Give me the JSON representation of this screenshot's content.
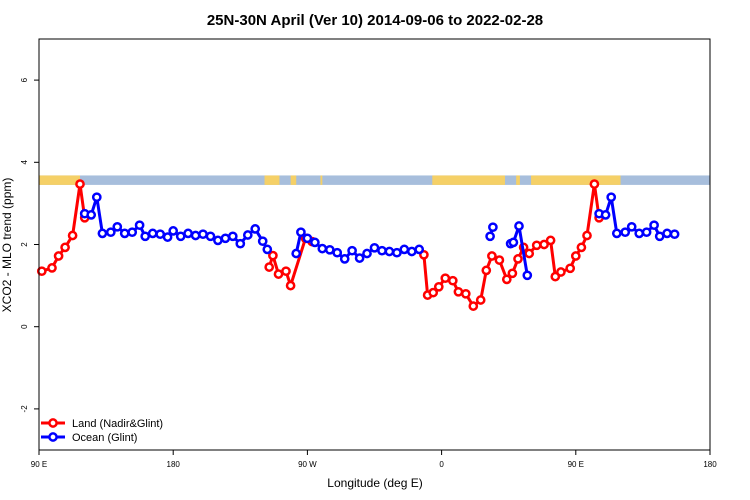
{
  "chart_data": {
    "type": "line",
    "title": "25N-30N April (Ver 10)   2014-09-06 to 2022-02-28",
    "xlabel": "Longitude (deg E)",
    "ylabel": "XCO2 - MLO trend (ppm)",
    "xlim": [
      90,
      450
    ],
    "ylim": [
      -3,
      7
    ],
    "x_ticks": [
      {
        "value": 90,
        "label": "90 E"
      },
      {
        "value": 162,
        "label": "180"
      },
      {
        "value": 234,
        "label": "90 W"
      },
      {
        "value": 306,
        "label": "0"
      },
      {
        "value": 378,
        "label": "90 E"
      },
      {
        "value": 450,
        "label": "180"
      }
    ],
    "y_ticks": [
      -2,
      0,
      2,
      4,
      6
    ],
    "grid": false,
    "legend_position": "bottom-left",
    "colors": {
      "land": "#ff0000",
      "ocean": "#0000ff",
      "band_ocean": "#a7bedc",
      "band_land": "#f5d067"
    },
    "land_band": {
      "y_range": [
        3.45,
        3.68
      ],
      "land_lon_ranges": [
        [
          90,
          112
        ],
        [
          211,
          219
        ],
        [
          225,
          228
        ],
        [
          241,
          242
        ],
        [
          301,
          340
        ],
        [
          346,
          348
        ],
        [
          354,
          402
        ]
      ]
    },
    "series": [
      {
        "name": "Land (Nadir&Glint)",
        "color": "#ff0000",
        "segments": [
          [
            [
              91.5,
              1.35
            ],
            [
              97,
              1.43
            ],
            [
              100.5,
              1.72
            ],
            [
              104,
              1.93
            ],
            [
              108,
              2.22
            ],
            [
              112,
              3.47
            ],
            [
              114.5,
              2.65
            ]
          ],
          [
            [
              213.5,
              1.45
            ],
            [
              215.5,
              1.73
            ],
            [
              218.5,
              1.28
            ],
            [
              222.5,
              1.35
            ],
            [
              225,
              1.0
            ],
            [
              233,
              2.15
            ],
            [
              236.5,
              2.07
            ]
          ],
          [
            [
              296.5,
              1.75
            ],
            [
              298.5,
              0.77
            ],
            [
              301.5,
              0.83
            ],
            [
              304.5,
              0.97
            ],
            [
              308,
              1.18
            ],
            [
              312,
              1.12
            ],
            [
              315,
              0.85
            ],
            [
              319,
              0.8
            ],
            [
              323,
              0.5
            ],
            [
              327,
              0.65
            ],
            [
              330,
              1.37
            ],
            [
              333,
              1.72
            ],
            [
              337,
              1.62
            ],
            [
              341,
              1.15
            ],
            [
              344,
              1.3
            ],
            [
              347,
              1.65
            ],
            [
              350,
              1.93
            ],
            [
              353,
              1.78
            ],
            [
              357,
              1.98
            ],
            [
              361,
              2.0
            ],
            [
              364.5,
              2.1
            ],
            [
              367,
              1.22
            ],
            [
              370,
              1.33
            ],
            [
              375,
              1.42
            ],
            [
              378,
              1.72
            ],
            [
              381,
              1.93
            ],
            [
              384,
              2.22
            ],
            [
              388,
              3.47
            ],
            [
              390.5,
              2.65
            ]
          ]
        ]
      },
      {
        "name": "Ocean (Glint)",
        "color": "#0000ff",
        "segments": [
          [
            [
              114.5,
              2.75
            ],
            [
              118,
              2.72
            ],
            [
              121,
              3.15
            ],
            [
              124,
              2.27
            ],
            [
              128.5,
              2.3
            ],
            [
              132,
              2.43
            ],
            [
              136,
              2.27
            ],
            [
              140,
              2.3
            ],
            [
              144,
              2.47
            ],
            [
              147,
              2.2
            ],
            [
              151,
              2.27
            ],
            [
              155,
              2.25
            ],
            [
              159,
              2.18
            ],
            [
              162,
              2.33
            ],
            [
              166,
              2.2
            ],
            [
              170,
              2.27
            ],
            [
              174,
              2.22
            ],
            [
              178,
              2.25
            ],
            [
              182,
              2.2
            ],
            [
              186,
              2.1
            ],
            [
              190,
              2.15
            ],
            [
              194,
              2.2
            ],
            [
              198,
              2.02
            ],
            [
              202,
              2.23
            ],
            [
              206,
              2.38
            ],
            [
              210,
              2.08
            ],
            [
              212.5,
              1.88
            ]
          ],
          [
            [
              228,
              1.78
            ],
            [
              230.5,
              2.3
            ],
            [
              234,
              2.15
            ],
            [
              238,
              2.05
            ],
            [
              242,
              1.9
            ],
            [
              246,
              1.87
            ],
            [
              250,
              1.8
            ],
            [
              254,
              1.65
            ],
            [
              258,
              1.85
            ],
            [
              262,
              1.67
            ],
            [
              266,
              1.78
            ],
            [
              270,
              1.92
            ],
            [
              274,
              1.85
            ],
            [
              278,
              1.83
            ],
            [
              282,
              1.8
            ],
            [
              286,
              1.88
            ],
            [
              290,
              1.83
            ],
            [
              294,
              1.88
            ]
          ],
          [
            [
              332,
              2.2
            ],
            [
              333.5,
              2.42
            ]
          ],
          [
            [
              343,
              2.02
            ],
            [
              344.5,
              2.05
            ],
            [
              347.5,
              2.45
            ],
            [
              352,
              1.25
            ]
          ],
          [
            [
              390.5,
              2.75
            ],
            [
              394,
              2.72
            ],
            [
              397,
              3.15
            ],
            [
              400,
              2.27
            ],
            [
              404.5,
              2.3
            ],
            [
              408,
              2.43
            ],
            [
              412,
              2.27
            ],
            [
              416,
              2.3
            ],
            [
              420,
              2.47
            ],
            [
              423,
              2.2
            ],
            [
              427,
              2.27
            ],
            [
              431,
              2.25
            ]
          ]
        ]
      }
    ]
  }
}
